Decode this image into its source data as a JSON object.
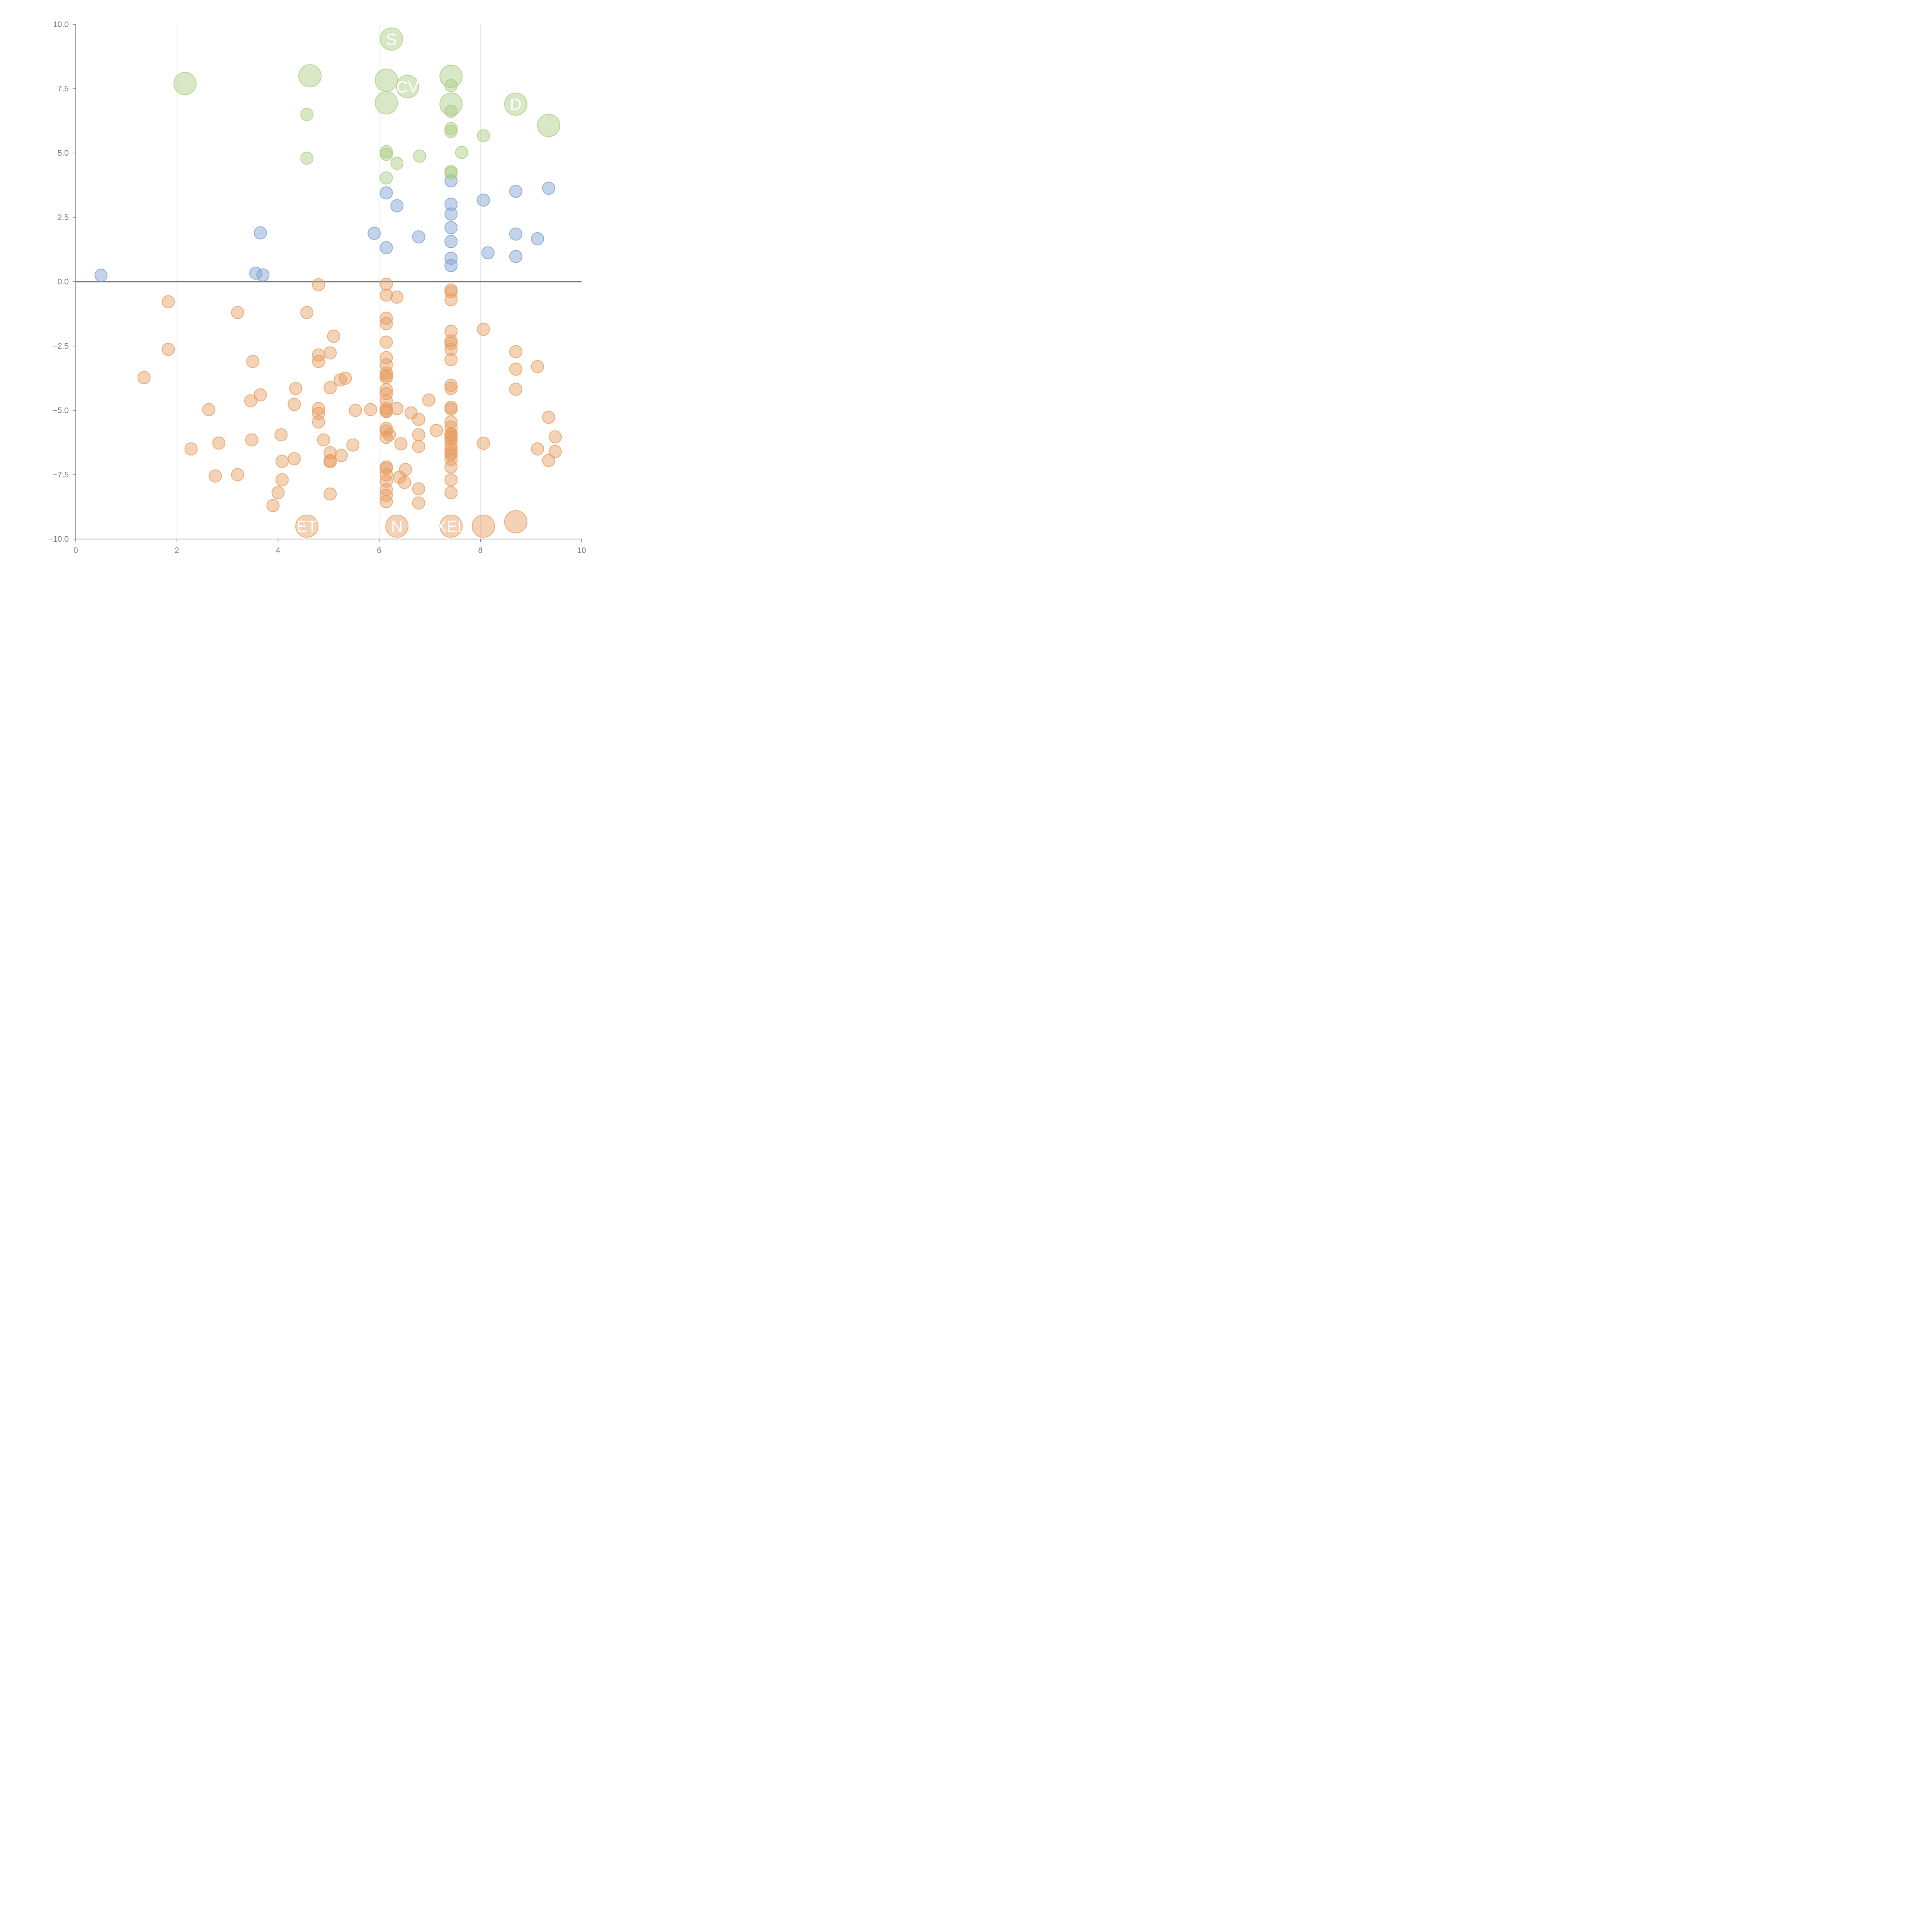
{
  "chart_data": {
    "type": "scatter",
    "title": "",
    "xlabel": "",
    "ylabel": "",
    "xlim": [
      0,
      10
    ],
    "ylim": [
      -10,
      10
    ],
    "x_ticks": [
      "0",
      "2",
      "4",
      "6",
      "8",
      "10"
    ],
    "y_ticks": [
      "10.0",
      "7.5",
      "5.0",
      "2.5",
      "0.0",
      "−2.5",
      "−5.0",
      "−7.5",
      "−10.0"
    ],
    "grid": "vertical",
    "baseline": 0,
    "colors": {
      "blue": "#7b9fd1",
      "green": "#a9cc80",
      "orange": "#e69c5e",
      "axis": "#777777",
      "grid": "#dddddd",
      "label": "#ffffff"
    },
    "series": [
      {
        "color_key": "blue",
        "points": [
          [
            0.5,
            0.25
          ],
          [
            3.56,
            0.33
          ],
          [
            3.65,
            1.9
          ],
          [
            3.7,
            0.26
          ],
          [
            5.9,
            1.88
          ],
          [
            6.14,
            3.45
          ],
          [
            6.14,
            1.32
          ],
          [
            6.35,
            2.95
          ],
          [
            6.78,
            1.74
          ],
          [
            7.42,
            3.92
          ],
          [
            7.42,
            3.01
          ],
          [
            7.42,
            2.63
          ],
          [
            7.42,
            2.1
          ],
          [
            7.42,
            1.56
          ],
          [
            7.42,
            0.91
          ],
          [
            7.42,
            0.63
          ],
          [
            8.06,
            3.17
          ],
          [
            8.15,
            1.12
          ],
          [
            8.7,
            3.51
          ],
          [
            8.7,
            1.85
          ],
          [
            8.7,
            0.98
          ],
          [
            9.13,
            1.67
          ],
          [
            9.35,
            3.63
          ]
        ]
      },
      {
        "color_key": "green",
        "points": [
          [
            4.57,
            6.5
          ],
          [
            4.57,
            4.8
          ],
          [
            6.14,
            5.05
          ],
          [
            6.14,
            4.95
          ],
          [
            6.14,
            4.03
          ],
          [
            6.35,
            4.6
          ],
          [
            6.8,
            4.88
          ],
          [
            7.42,
            7.62
          ],
          [
            7.42,
            6.62
          ],
          [
            7.42,
            5.95
          ],
          [
            7.42,
            5.84
          ],
          [
            7.42,
            4.28
          ],
          [
            7.42,
            4.22
          ],
          [
            7.63,
            5.02
          ],
          [
            8.06,
            5.67
          ]
        ],
        "large": [
          [
            2.16,
            7.7
          ],
          [
            4.63,
            8.0
          ],
          [
            6.14,
            7.83
          ],
          [
            6.14,
            6.95
          ],
          [
            6.24,
            9.43
          ],
          [
            6.56,
            7.58
          ],
          [
            7.42,
            7.98
          ],
          [
            7.42,
            6.9
          ],
          [
            8.7,
            6.9
          ],
          [
            9.35,
            6.07
          ]
        ]
      },
      {
        "color_key": "orange",
        "points": [
          [
            1.35,
            -3.73
          ],
          [
            1.83,
            -0.78
          ],
          [
            1.83,
            -2.63
          ],
          [
            2.28,
            -6.5
          ],
          [
            2.63,
            -4.97
          ],
          [
            2.76,
            -7.55
          ],
          [
            2.83,
            -6.27
          ],
          [
            3.2,
            -1.2
          ],
          [
            3.2,
            -7.5
          ],
          [
            3.46,
            -4.63
          ],
          [
            3.48,
            -6.15
          ],
          [
            3.5,
            -3.1
          ],
          [
            3.65,
            -4.4
          ],
          [
            3.9,
            -8.7
          ],
          [
            4.0,
            -8.2
          ],
          [
            4.06,
            -5.95
          ],
          [
            4.08,
            -7.7
          ],
          [
            4.08,
            -6.98
          ],
          [
            4.32,
            -4.77
          ],
          [
            4.32,
            -6.88
          ],
          [
            4.35,
            -4.15
          ],
          [
            4.57,
            -1.2
          ],
          [
            4.8,
            -0.12
          ],
          [
            4.8,
            -2.85
          ],
          [
            4.8,
            -3.1
          ],
          [
            4.8,
            -4.93
          ],
          [
            4.8,
            -5.12
          ],
          [
            4.8,
            -5.45
          ],
          [
            4.9,
            -6.15
          ],
          [
            5.03,
            -2.77
          ],
          [
            5.03,
            -4.12
          ],
          [
            5.03,
            -6.65
          ],
          [
            5.03,
            -6.95
          ],
          [
            5.03,
            -7.0
          ],
          [
            5.03,
            -8.25
          ],
          [
            5.1,
            -2.12
          ],
          [
            5.23,
            -3.82
          ],
          [
            5.25,
            -6.75
          ],
          [
            5.33,
            -3.75
          ],
          [
            5.48,
            -6.35
          ],
          [
            5.53,
            -5.0
          ],
          [
            5.83,
            -4.97
          ],
          [
            6.14,
            -0.1
          ],
          [
            6.14,
            -0.52
          ],
          [
            6.14,
            -1.42
          ],
          [
            6.14,
            -1.63
          ],
          [
            6.14,
            -2.35
          ],
          [
            6.14,
            -2.95
          ],
          [
            6.14,
            -3.23
          ],
          [
            6.14,
            -3.55
          ],
          [
            6.14,
            -3.65
          ],
          [
            6.14,
            -3.73
          ],
          [
            6.14,
            -4.2
          ],
          [
            6.14,
            -4.35
          ],
          [
            6.14,
            -4.63
          ],
          [
            6.14,
            -4.93
          ],
          [
            6.14,
            -5.0
          ],
          [
            6.14,
            -5.05
          ],
          [
            6.14,
            -5.7
          ],
          [
            6.14,
            -5.8
          ],
          [
            6.14,
            -6.05
          ],
          [
            6.14,
            -7.2
          ],
          [
            6.14,
            -7.25
          ],
          [
            6.14,
            -7.5
          ],
          [
            6.14,
            -7.75
          ],
          [
            6.14,
            -8.08
          ],
          [
            6.14,
            -8.3
          ],
          [
            6.14,
            -8.55
          ],
          [
            6.2,
            -5.95
          ],
          [
            6.35,
            -0.6
          ],
          [
            6.35,
            -4.93
          ],
          [
            6.4,
            -7.6
          ],
          [
            6.43,
            -6.3
          ],
          [
            6.5,
            -7.8
          ],
          [
            6.52,
            -7.3
          ],
          [
            6.63,
            -5.1
          ],
          [
            6.78,
            -5.35
          ],
          [
            6.78,
            -5.95
          ],
          [
            6.78,
            -6.4
          ],
          [
            6.78,
            -8.05
          ],
          [
            6.78,
            -8.6
          ],
          [
            6.98,
            -4.6
          ],
          [
            7.13,
            -5.78
          ],
          [
            7.42,
            -0.32
          ],
          [
            7.42,
            -0.4
          ],
          [
            7.42,
            -0.7
          ],
          [
            7.42,
            -1.93
          ],
          [
            7.42,
            -2.3
          ],
          [
            7.42,
            -2.4
          ],
          [
            7.42,
            -2.63
          ],
          [
            7.42,
            -3.03
          ],
          [
            7.42,
            -4.03
          ],
          [
            7.42,
            -4.15
          ],
          [
            7.42,
            -4.88
          ],
          [
            7.42,
            -4.95
          ],
          [
            7.42,
            -5.45
          ],
          [
            7.42,
            -5.65
          ],
          [
            7.42,
            -5.9
          ],
          [
            7.42,
            -5.95
          ],
          [
            7.42,
            -6.05
          ],
          [
            7.42,
            -6.15
          ],
          [
            7.42,
            -6.35
          ],
          [
            7.42,
            -6.5
          ],
          [
            7.42,
            -6.65
          ],
          [
            7.42,
            -6.72
          ],
          [
            7.42,
            -6.9
          ],
          [
            7.42,
            -7.2
          ],
          [
            7.42,
            -7.7
          ],
          [
            7.42,
            -8.2
          ],
          [
            8.06,
            -1.85
          ],
          [
            8.06,
            -6.28
          ],
          [
            8.7,
            -2.72
          ],
          [
            8.7,
            -3.4
          ],
          [
            8.7,
            -4.18
          ],
          [
            9.13,
            -3.3
          ],
          [
            9.13,
            -6.5
          ],
          [
            9.35,
            -5.27
          ],
          [
            9.35,
            -6.95
          ],
          [
            9.48,
            -6.03
          ],
          [
            9.48,
            -6.6
          ]
        ],
        "large": [
          [
            4.57,
            -9.5
          ],
          [
            6.35,
            -9.5
          ],
          [
            7.42,
            -9.5
          ],
          [
            8.06,
            -9.5
          ],
          [
            8.7,
            -9.33
          ]
        ]
      }
    ],
    "annotations": [
      {
        "text": "S",
        "x": 6.24,
        "y": 9.43,
        "color": "#ffffff"
      },
      {
        "text": "CV",
        "x": 6.56,
        "y": 7.58,
        "color": "#ffffff"
      },
      {
        "text": "D",
        "x": 8.7,
        "y": 6.9,
        "color": "#ffffff"
      },
      {
        "text": "ET",
        "x": 4.57,
        "y": -9.5,
        "color": "#ffffff"
      },
      {
        "text": "N",
        "x": 6.35,
        "y": -9.5,
        "color": "#ffffff"
      },
      {
        "text": "XEL",
        "x": 7.42,
        "y": -9.5,
        "color": "#ffffff"
      }
    ]
  }
}
